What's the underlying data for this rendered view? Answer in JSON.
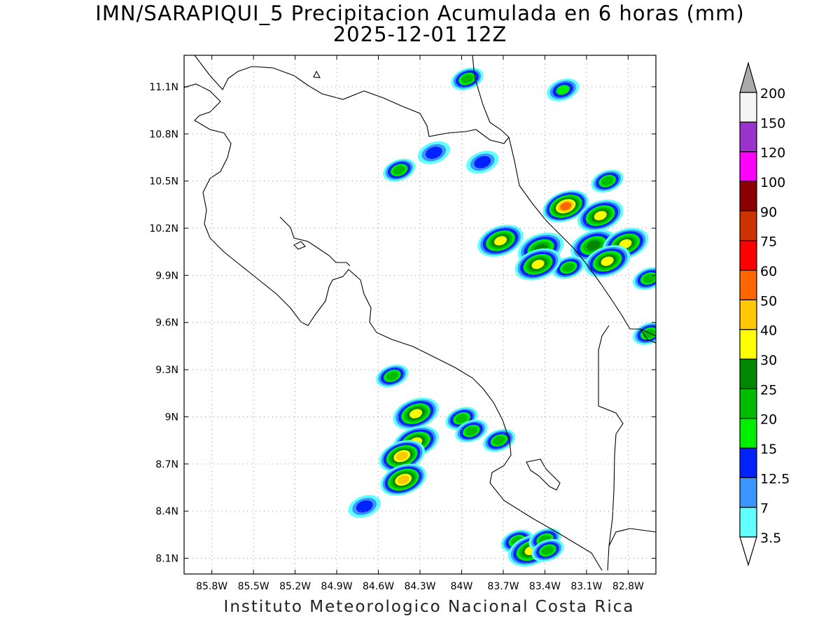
{
  "title": {
    "line1": "IMN/SARAPIQUI_5 Precipitacion Acumulada en 6 horas (mm)",
    "line2": "2025-12-01 12Z"
  },
  "footer": "Instituto Meteorologico Nacional Costa Rica",
  "map": {
    "lon_range": [
      -86.0,
      -82.6
    ],
    "lat_range": [
      8.0,
      11.3
    ],
    "lat_ticks": [
      {
        "value": 11.1,
        "label": "11.1N"
      },
      {
        "value": 10.8,
        "label": "10.8N"
      },
      {
        "value": 10.5,
        "label": "10.5N"
      },
      {
        "value": 10.2,
        "label": "10.2N"
      },
      {
        "value": 9.9,
        "label": "9.9N"
      },
      {
        "value": 9.6,
        "label": "9.6N"
      },
      {
        "value": 9.3,
        "label": "9.3N"
      },
      {
        "value": 9.0,
        "label": "9N"
      },
      {
        "value": 8.7,
        "label": "8.7N"
      },
      {
        "value": 8.4,
        "label": "8.4N"
      },
      {
        "value": 8.1,
        "label": "8.1N"
      }
    ],
    "lon_ticks": [
      {
        "value": -85.8,
        "label": "85.8W"
      },
      {
        "value": -85.5,
        "label": "85.5W"
      },
      {
        "value": -85.2,
        "label": "85.2W"
      },
      {
        "value": -84.9,
        "label": "84.9W"
      },
      {
        "value": -84.6,
        "label": "84.6W"
      },
      {
        "value": -84.3,
        "label": "84.3W"
      },
      {
        "value": -84.0,
        "label": "84W"
      },
      {
        "value": -83.7,
        "label": "83.7W"
      },
      {
        "value": -83.4,
        "label": "83.4W"
      },
      {
        "value": -83.1,
        "label": "83.1W"
      },
      {
        "value": -82.8,
        "label": "82.8W"
      }
    ],
    "gridlines": "dotted"
  },
  "colorbar": {
    "labels": [
      "3.5",
      "7",
      "12.5",
      "15",
      "20",
      "25",
      "30",
      "40",
      "50",
      "60",
      "75",
      "90",
      "100",
      "120",
      "150",
      "200"
    ],
    "colors": [
      "#62ffff",
      "#3a96ff",
      "#0022ff",
      "#00ee00",
      "#00bb00",
      "#008800",
      "#ffff00",
      "#ffc800",
      "#ff6600",
      "#ff0000",
      "#cc3300",
      "#8b0000",
      "#ff00ff",
      "#9933cc",
      "#f5f5f5",
      "#aaaaaa"
    ]
  },
  "precip_cells": [
    {
      "lon": -84.45,
      "lat": 10.57,
      "peak": 20
    },
    {
      "lon": -84.2,
      "lat": 10.68,
      "peak": 12.5
    },
    {
      "lon": -83.85,
      "lat": 10.62,
      "peak": 12.5
    },
    {
      "lon": -83.25,
      "lat": 10.34,
      "peak": 50
    },
    {
      "lon": -83.72,
      "lat": 10.12,
      "peak": 30
    },
    {
      "lon": -83.43,
      "lat": 10.07,
      "peak": 25
    },
    {
      "lon": -83.05,
      "lat": 10.09,
      "peak": 25
    },
    {
      "lon": -82.82,
      "lat": 10.1,
      "peak": 30
    },
    {
      "lon": -83.0,
      "lat": 10.28,
      "peak": 30
    },
    {
      "lon": -83.23,
      "lat": 9.95,
      "peak": 20
    },
    {
      "lon": -83.45,
      "lat": 9.97,
      "peak": 30
    },
    {
      "lon": -82.95,
      "lat": 9.99,
      "peak": 30
    },
    {
      "lon": -82.65,
      "lat": 9.88,
      "peak": 20
    },
    {
      "lon": -83.27,
      "lat": 11.08,
      "peak": 15
    },
    {
      "lon": -83.96,
      "lat": 11.15,
      "peak": 20
    },
    {
      "lon": -82.95,
      "lat": 10.5,
      "peak": 20
    },
    {
      "lon": -82.65,
      "lat": 9.53,
      "peak": 20
    },
    {
      "lon": -84.5,
      "lat": 9.26,
      "peak": 20
    },
    {
      "lon": -84.33,
      "lat": 9.02,
      "peak": 30
    },
    {
      "lon": -84.33,
      "lat": 8.84,
      "peak": 30
    },
    {
      "lon": -84.43,
      "lat": 8.75,
      "peak": 40
    },
    {
      "lon": -84.42,
      "lat": 8.6,
      "peak": 40
    },
    {
      "lon": -84.0,
      "lat": 8.99,
      "peak": 20
    },
    {
      "lon": -83.93,
      "lat": 8.91,
      "peak": 20
    },
    {
      "lon": -83.73,
      "lat": 8.85,
      "peak": 20
    },
    {
      "lon": -84.7,
      "lat": 8.43,
      "peak": 12.5
    },
    {
      "lon": -83.6,
      "lat": 8.21,
      "peak": 20
    },
    {
      "lon": -83.5,
      "lat": 8.15,
      "peak": 30
    },
    {
      "lon": -83.4,
      "lat": 8.22,
      "peak": 20
    },
    {
      "lon": -83.38,
      "lat": 8.15,
      "peak": 20
    }
  ]
}
